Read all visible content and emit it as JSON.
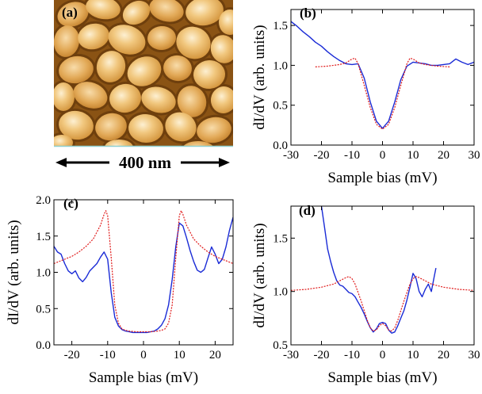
{
  "figure": {
    "scale_label": "400 nm",
    "afm_tag": "(a)",
    "afm_colors": {
      "dark": "#5a3308",
      "mid": "#c27d22",
      "light": "#f6d49a",
      "highlight": "#fdf0d2",
      "cyan_edge": "#8fd0d0"
    }
  },
  "chart_data": [
    {
      "panel": "(b)",
      "type": "line",
      "xlabel": "Sample bias (mV)",
      "ylabel": "dI/dV (arb. units)",
      "xlim": [
        -30,
        30
      ],
      "ylim": [
        0.0,
        1.7
      ],
      "xticks": [
        -30,
        -20,
        -10,
        0,
        10,
        20,
        30
      ],
      "yticks": [
        0.0,
        0.5,
        1.0,
        1.5
      ],
      "ytick_labels": [
        "0.0",
        "0.5",
        "1.0",
        "1.5"
      ],
      "series": [
        {
          "style": "measured",
          "color": "#1a2bd6",
          "x": [
            -30,
            -28,
            -26,
            -24,
            -22,
            -20,
            -18,
            -16,
            -14,
            -12,
            -10,
            -8,
            -6,
            -4,
            -2,
            0,
            2,
            4,
            6,
            8,
            10,
            12,
            14,
            16,
            18,
            20,
            22,
            24,
            26,
            28,
            30
          ],
          "y": [
            1.55,
            1.49,
            1.42,
            1.36,
            1.29,
            1.24,
            1.17,
            1.11,
            1.06,
            1.02,
            1.01,
            1.02,
            0.84,
            0.54,
            0.3,
            0.21,
            0.3,
            0.54,
            0.82,
            0.99,
            1.04,
            1.03,
            1.02,
            1.0,
            1.0,
            1.01,
            1.02,
            1.08,
            1.04,
            1.01,
            1.04
          ]
        },
        {
          "style": "fit",
          "color": "#e01b1b",
          "x": [
            -22,
            -18,
            -14,
            -12,
            -10,
            -9,
            -8,
            -6,
            -4,
            -2,
            0,
            2,
            4,
            6,
            8,
            9,
            10,
            12,
            14,
            18,
            22
          ],
          "y": [
            0.98,
            0.99,
            1.01,
            1.03,
            1.08,
            1.09,
            1.02,
            0.75,
            0.47,
            0.26,
            0.2,
            0.26,
            0.47,
            0.75,
            1.02,
            1.09,
            1.08,
            1.03,
            1.01,
            0.99,
            0.98
          ]
        }
      ]
    },
    {
      "panel": "(c)",
      "type": "line",
      "xlabel": "Sample bias (mV)",
      "ylabel": "dI/dV (arb. units)",
      "xlim": [
        -25,
        25
      ],
      "ylim": [
        0.0,
        2.0
      ],
      "xticks": [
        -20,
        -10,
        0,
        10,
        20
      ],
      "yticks": [
        0.0,
        0.5,
        1.0,
        1.5,
        2.0
      ],
      "ytick_labels": [
        "0.0",
        "0.5",
        "1.0",
        "1.5",
        "2.0"
      ],
      "series": [
        {
          "style": "measured",
          "color": "#1a2bd6",
          "x": [
            -25,
            -24,
            -23,
            -22,
            -21,
            -20,
            -19,
            -18,
            -17,
            -16,
            -15,
            -14,
            -13,
            -12,
            -11,
            -10,
            -9,
            -8,
            -7,
            -6,
            -5,
            -4,
            -3,
            -2,
            -1,
            0,
            1,
            2,
            3,
            4,
            5,
            6,
            7,
            8,
            9,
            10,
            11,
            12,
            13,
            14,
            15,
            16,
            17,
            18,
            19,
            20,
            21,
            22,
            23,
            24,
            25
          ],
          "y": [
            1.36,
            1.28,
            1.25,
            1.12,
            1.02,
            0.98,
            1.02,
            0.92,
            0.87,
            0.93,
            1.02,
            1.07,
            1.12,
            1.21,
            1.28,
            1.18,
            0.72,
            0.38,
            0.26,
            0.21,
            0.19,
            0.18,
            0.17,
            0.17,
            0.17,
            0.17,
            0.17,
            0.18,
            0.19,
            0.22,
            0.27,
            0.36,
            0.55,
            0.9,
            1.35,
            1.68,
            1.64,
            1.48,
            1.3,
            1.15,
            1.03,
            1.0,
            1.04,
            1.2,
            1.35,
            1.25,
            1.12,
            1.18,
            1.35,
            1.58,
            1.76
          ]
        },
        {
          "style": "fit",
          "color": "#e01b1b",
          "x": [
            -25,
            -22,
            -20,
            -18,
            -16,
            -14,
            -12,
            -11,
            -10.5,
            -10,
            -9,
            -8,
            -7,
            -6,
            -5,
            -4,
            -2,
            0,
            2,
            4,
            5,
            6,
            7,
            8,
            9,
            10,
            10.5,
            11,
            12,
            14,
            16,
            18,
            20,
            22,
            25
          ],
          "y": [
            1.12,
            1.18,
            1.22,
            1.28,
            1.36,
            1.46,
            1.65,
            1.8,
            1.85,
            1.78,
            1.2,
            0.55,
            0.3,
            0.22,
            0.2,
            0.19,
            0.18,
            0.18,
            0.18,
            0.19,
            0.2,
            0.22,
            0.3,
            0.55,
            1.2,
            1.78,
            1.85,
            1.8,
            1.65,
            1.46,
            1.36,
            1.28,
            1.22,
            1.18,
            1.12
          ]
        }
      ]
    },
    {
      "panel": "(d)",
      "type": "line",
      "xlabel": "Sample bias (mV)",
      "ylabel": "dI/dV (arb. units)",
      "xlim": [
        -30,
        30
      ],
      "ylim": [
        0.5,
        1.8
      ],
      "xticks": [
        -30,
        -20,
        -10,
        0,
        10,
        20,
        30
      ],
      "yticks": [
        0.5,
        1.0,
        1.5
      ],
      "ytick_labels": [
        "0.5",
        "1.0",
        "1.5"
      ],
      "series": [
        {
          "style": "measured",
          "color": "#1a2bd6",
          "x": [
            -20,
            -19,
            -18,
            -17,
            -16,
            -15,
            -14,
            -13,
            -12,
            -11,
            -10,
            -9,
            -8,
            -7,
            -6,
            -5,
            -4,
            -3,
            -2,
            -1,
            0,
            1,
            2,
            3,
            4,
            5,
            6,
            7,
            8,
            9,
            10,
            11,
            12,
            13,
            14,
            15,
            16,
            17,
            17.5
          ],
          "y": [
            1.8,
            1.6,
            1.4,
            1.28,
            1.18,
            1.1,
            1.06,
            1.05,
            1.02,
            0.99,
            0.98,
            0.95,
            0.9,
            0.85,
            0.79,
            0.72,
            0.66,
            0.62,
            0.65,
            0.7,
            0.71,
            0.7,
            0.64,
            0.61,
            0.62,
            0.68,
            0.75,
            0.82,
            0.92,
            1.04,
            1.17,
            1.12,
            1.0,
            0.95,
            1.02,
            1.07,
            1.0,
            1.15,
            1.22
          ]
        },
        {
          "style": "fit",
          "color": "#e01b1b",
          "x": [
            -30,
            -25,
            -20,
            -16,
            -14,
            -12,
            -11,
            -10,
            -9,
            -8,
            -7,
            -6,
            -5,
            -4,
            -3,
            -2,
            -1,
            0,
            1,
            2,
            3,
            4,
            5,
            6,
            7,
            8,
            9,
            10,
            11,
            12,
            14,
            16,
            20,
            25,
            30
          ],
          "y": [
            1.01,
            1.02,
            1.04,
            1.07,
            1.1,
            1.13,
            1.14,
            1.12,
            1.07,
            0.99,
            0.91,
            0.82,
            0.73,
            0.66,
            0.63,
            0.64,
            0.68,
            0.7,
            0.68,
            0.64,
            0.63,
            0.66,
            0.73,
            0.82,
            0.91,
            0.99,
            1.07,
            1.12,
            1.14,
            1.13,
            1.1,
            1.07,
            1.04,
            1.02,
            1.01
          ]
        }
      ]
    }
  ]
}
